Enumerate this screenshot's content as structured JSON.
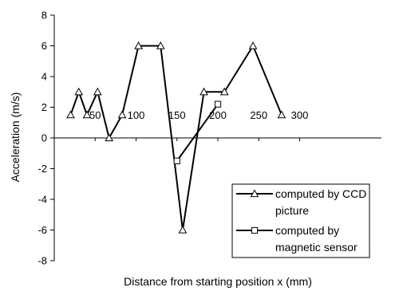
{
  "chart_data": {
    "type": "line",
    "xlabel": "Distance from starting position  x  (mm)",
    "ylabel": "Acceleration        (m/s)",
    "xlim": [
      0,
      400
    ],
    "ylim": [
      -8,
      8
    ],
    "x_ticks": [
      "50",
      "100",
      "150",
      "200",
      "250",
      "300"
    ],
    "y_ticks": [
      "8",
      "6",
      "4",
      "2",
      "0",
      "-2",
      "-4",
      "-6",
      "-8"
    ],
    "grid": false,
    "legend_position": "bottom-right",
    "series": [
      {
        "name": "computed by CCD picture",
        "marker": "triangle",
        "points": [
          {
            "x": 20,
            "y": 1.5
          },
          {
            "x": 30,
            "y": 3
          },
          {
            "x": 40,
            "y": 1.5
          },
          {
            "x": 53,
            "y": 3
          },
          {
            "x": 67,
            "y": 0
          },
          {
            "x": 83,
            "y": 1.5
          },
          {
            "x": 103,
            "y": 6
          },
          {
            "x": 130,
            "y": 6
          },
          {
            "x": 157,
            "y": -6
          },
          {
            "x": 183,
            "y": 3
          },
          {
            "x": 208,
            "y": 3
          },
          {
            "x": 243,
            "y": 6
          },
          {
            "x": 278,
            "y": 1.5
          }
        ]
      },
      {
        "name": "computed by magnetic sensor",
        "marker": "square",
        "points": [
          {
            "x": 150,
            "y": -1.5
          },
          {
            "x": 200,
            "y": 2.2
          }
        ]
      }
    ],
    "legend": {
      "entries": [
        {
          "lines": [
            "computed by CCD",
            "picture"
          ],
          "marker": "triangle"
        },
        {
          "lines": [
            "computed by",
            "magnetic sensor"
          ],
          "marker": "square"
        }
      ]
    }
  }
}
